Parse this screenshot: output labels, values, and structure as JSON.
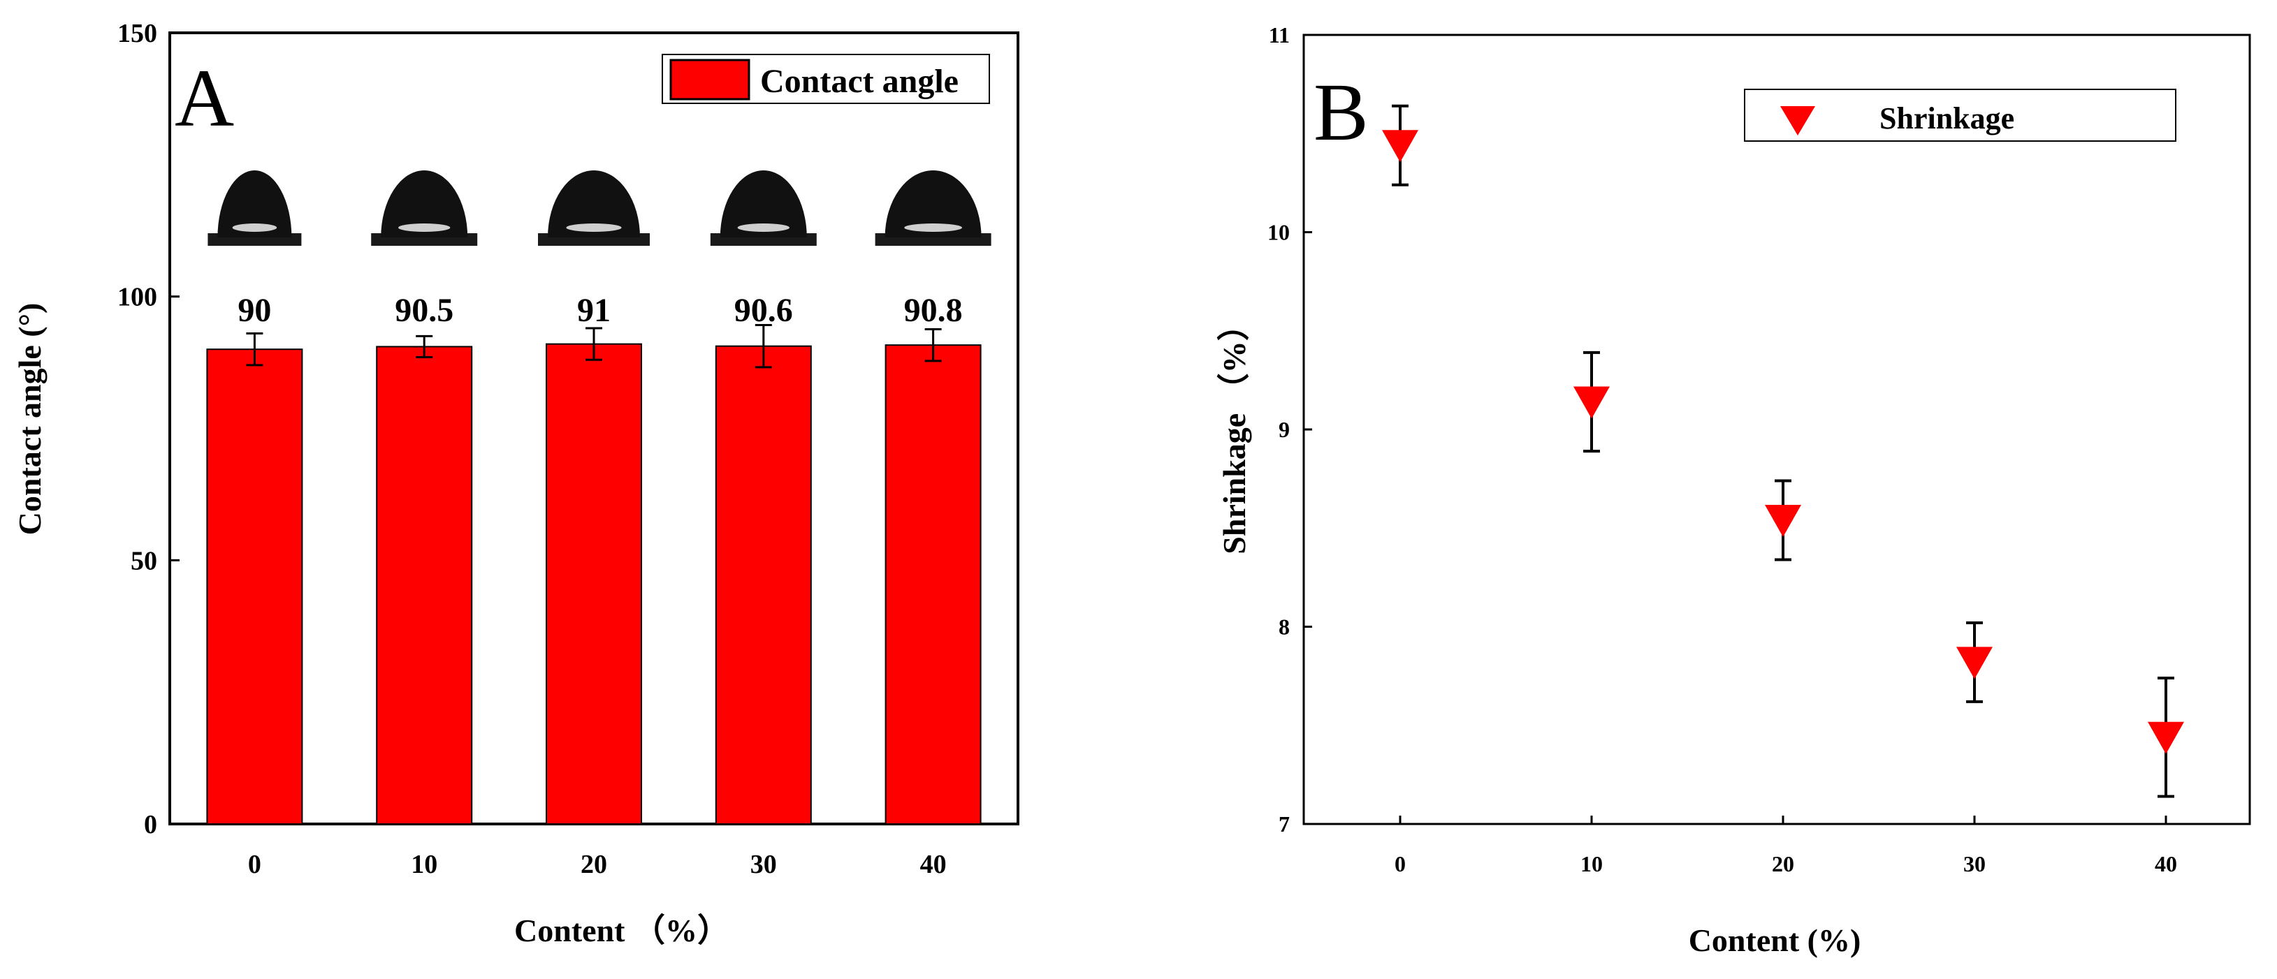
{
  "colors": {
    "accent": "#ff0000",
    "axis": "#000000",
    "background": "#ffffff"
  },
  "chart_data": [
    {
      "panel": "A",
      "type": "bar",
      "categories": [
        "0",
        "10",
        "20",
        "30",
        "40"
      ],
      "series": [
        {
          "name": "Contact angle",
          "values": [
            90,
            90.5,
            91,
            90.6,
            90.8
          ],
          "errors": [
            3,
            2,
            3,
            4,
            3
          ]
        }
      ],
      "value_labels": [
        "90",
        "90.5",
        "91",
        "90.6",
        "90.8"
      ],
      "xlabel": "Content （%）",
      "ylabel": "Contact angle (°)",
      "ylim": [
        0,
        150
      ],
      "yticks": [
        0,
        50,
        100,
        150
      ],
      "ytick_labels": [
        "0",
        "50",
        "100",
        "150"
      ],
      "legend": "top-right",
      "legend_label": "Contact angle",
      "inset": "droplet images above each bar",
      "title": "A"
    },
    {
      "panel": "B",
      "type": "scatter",
      "marker": "down-triangle",
      "x": [
        0,
        10,
        20,
        30,
        40
      ],
      "categories": [
        "0",
        "10",
        "20",
        "30",
        "40"
      ],
      "series": [
        {
          "name": "Shrinkage",
          "values": [
            10.44,
            9.14,
            8.54,
            7.82,
            7.44
          ],
          "err_plus": [
            0.2,
            0.25,
            0.2,
            0.2,
            0.3
          ],
          "err_minus": [
            0.2,
            0.25,
            0.2,
            0.2,
            0.3
          ]
        }
      ],
      "xlabel": "Content (%)",
      "ylabel": "Shrinkage （%）",
      "ylim": [
        7,
        11
      ],
      "yticks": [
        7,
        8,
        9,
        10,
        11
      ],
      "ytick_labels": [
        "7",
        "8",
        "9",
        "10",
        "11"
      ],
      "legend": "top-right",
      "legend_label": "Shrinkage",
      "title": "B"
    }
  ]
}
